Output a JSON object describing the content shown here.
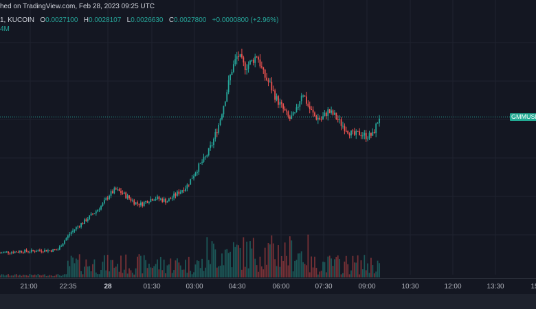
{
  "header": {
    "published_text": "hed on TradingView.com, Feb 28, 2023 09:25 UTC",
    "symbol_text": "1, KUCOIN",
    "ohlc": [
      {
        "key": "O",
        "value": "0.0027100"
      },
      {
        "key": "H",
        "value": "0.0028107"
      },
      {
        "key": "L",
        "value": "0.0026630"
      },
      {
        "key": "C",
        "value": "0.0027800"
      }
    ],
    "change": "+0.0000800 (+2.96%)",
    "volume_label": "4M"
  },
  "price_tag": "GMMUSDT",
  "colors": {
    "background": "#141722",
    "grid": "#1f2330",
    "up": "#26a69a",
    "down": "#ef5350",
    "axis_text": "#b2b5be",
    "price_line": "#26a69a"
  },
  "chart_data": {
    "type": "candlestick",
    "x_tick_labels": [
      "21:00",
      "22:35",
      "28",
      "01:30",
      "03:00",
      "04:30",
      "06:00",
      "07:30",
      "09:00",
      "10:30",
      "12:00",
      "13:30",
      "15"
    ],
    "close_series": [
      0.0011,
      0.00111,
      0.00111,
      0.00112,
      0.00112,
      0.00112,
      0.00113,
      0.00113,
      0.00113,
      0.00114,
      0.00125,
      0.00135,
      0.00142,
      0.00148,
      0.00155,
      0.00162,
      0.0017,
      0.00182,
      0.00188,
      0.00184,
      0.00178,
      0.00172,
      0.0017,
      0.00175,
      0.00178,
      0.00176,
      0.00174,
      0.0018,
      0.00186,
      0.00192,
      0.00205,
      0.00218,
      0.00228,
      0.00245,
      0.00268,
      0.003,
      0.00335,
      0.00355,
      0.0034,
      0.00345,
      0.00355,
      0.0033,
      0.00318,
      0.003,
      0.00288,
      0.00275,
      0.00282,
      0.0031,
      0.0029,
      0.00278,
      0.00275,
      0.00285,
      0.0028,
      0.0027,
      0.00262,
      0.00255,
      0.00258,
      0.00254,
      0.00256,
      0.00278
    ],
    "last_price": 0.00278,
    "y_range": [
      0.001,
      0.0038
    ]
  }
}
